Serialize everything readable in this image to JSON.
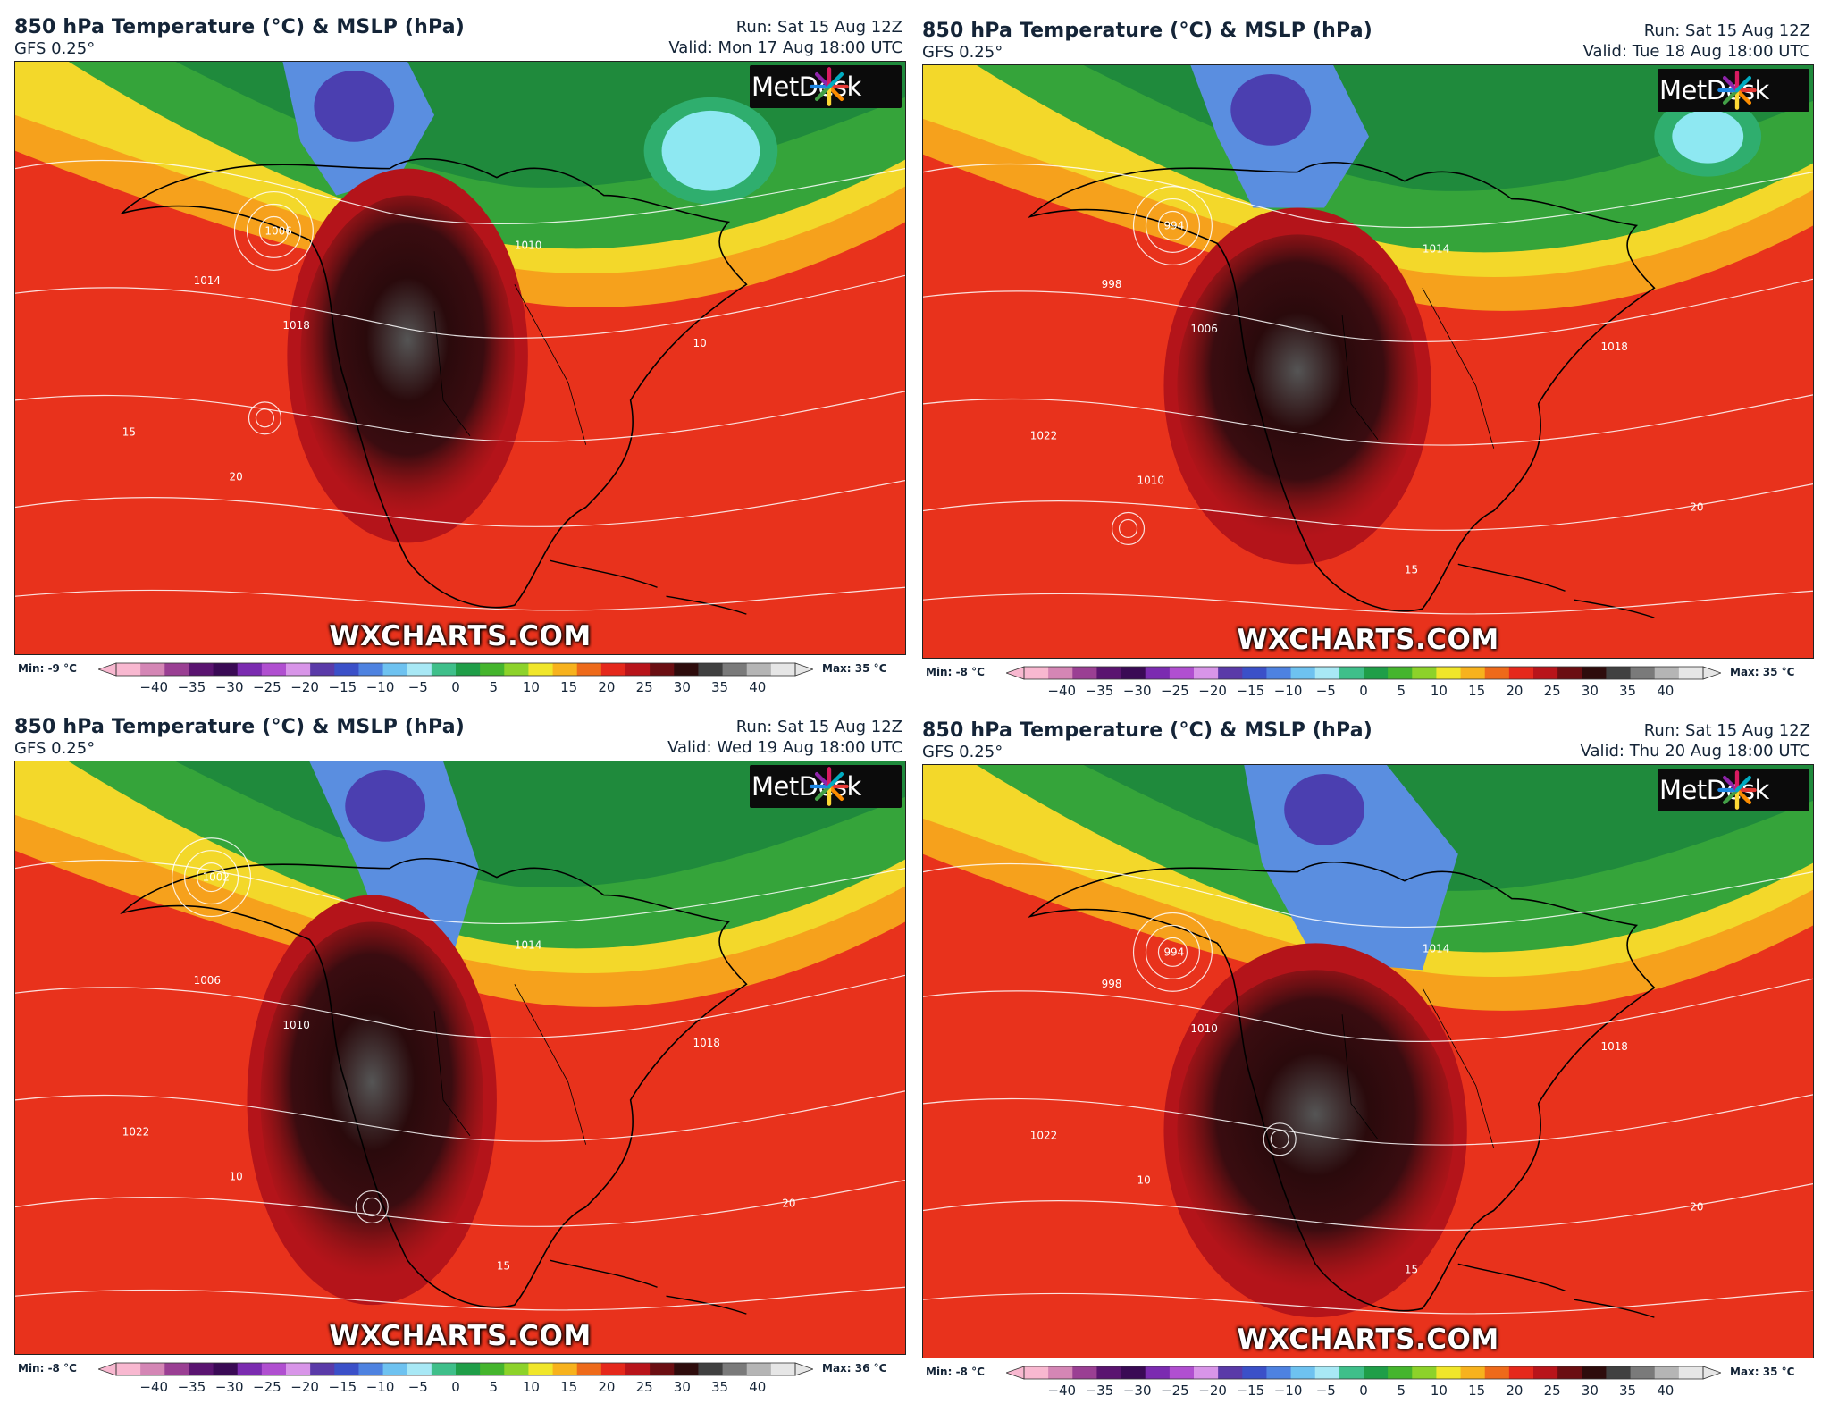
{
  "panels": [
    {
      "title": "850 hPa Temperature (°C) & MSLP (hPa)",
      "model": "GFS 0.25°",
      "run": "Run: Sat 15 Aug 12Z",
      "valid": "Valid: Mon 17 Aug 18:00 UTC",
      "min": "Min: -9 °C",
      "max": "Max: 35 °C",
      "contour_labels": [
        "1006",
        "1014",
        "1018",
        "1010",
        "10",
        "15",
        "20"
      ]
    },
    {
      "title": "850 hPa Temperature (°C) & MSLP (hPa)",
      "model": "GFS 0.25°",
      "run": "Run: Sat 15 Aug 12Z",
      "valid": "Valid: Tue 18 Aug 18:00 UTC",
      "min": "Min: -8 °C",
      "max": "Max: 35 °C",
      "contour_labels": [
        "994",
        "998",
        "1006",
        "1014",
        "1018",
        "1022",
        "1010",
        "15",
        "20"
      ]
    },
    {
      "title": "850 hPa Temperature (°C) & MSLP (hPa)",
      "model": "GFS 0.25°",
      "run": "Run: Sat 15 Aug 12Z",
      "valid": "Valid: Wed 19 Aug 18:00 UTC",
      "min": "Min: -8 °C",
      "max": "Max: 36 °C",
      "contour_labels": [
        "1002",
        "1006",
        "1010",
        "1014",
        "1018",
        "1022",
        "10",
        "15",
        "20"
      ]
    },
    {
      "title": "850 hPa Temperature (°C) & MSLP (hPa)",
      "model": "GFS 0.25°",
      "run": "Run: Sat 15 Aug 12Z",
      "valid": "Valid: Thu 20 Aug 18:00 UTC",
      "min": "Min: -8 °C",
      "max": "Max: 35 °C",
      "contour_labels": [
        "994",
        "998",
        "1010",
        "1014",
        "1018",
        "1022",
        "10",
        "15",
        "20"
      ]
    }
  ],
  "logo_text": "MetDesk",
  "site_watermark": "WXCHARTS.COM",
  "colorbar": {
    "ticks": [
      "−40",
      "−35",
      "−30",
      "−25",
      "−20",
      "−15",
      "−10",
      "−5",
      "0",
      "5",
      "10",
      "15",
      "20",
      "25",
      "30",
      "35",
      "40"
    ],
    "range": [
      -45,
      45
    ],
    "colors": [
      "#f8b8d0",
      "#d486b5",
      "#9a3f93",
      "#5a1470",
      "#3a0a55",
      "#7b2bb0",
      "#b04fd0",
      "#d895e8",
      "#5a3aa8",
      "#3b50c8",
      "#4e82e0",
      "#6ec2f0",
      "#a8e8f5",
      "#3fbf8a",
      "#1f9e48",
      "#45b52d",
      "#8dd22a",
      "#f0e62a",
      "#f7b21d",
      "#ee6a1a",
      "#e5281b",
      "#b8141a",
      "#6b0e12",
      "#2e0c0c",
      "#404040",
      "#7a7a7a",
      "#b5b5b5",
      "#e6e6e6"
    ]
  },
  "map_colors": {
    "ocean_warm": "#e8321c",
    "ocean_mid": "#f0681a",
    "band_orange": "#f6a11c",
    "band_yellow": "#f3d82a",
    "green": "#35a43a",
    "green_dark": "#1f8a3c",
    "cold_blue": "#5a8ee0",
    "cold_purple": "#4b3fb0",
    "cyan": "#8ee8f2",
    "heat_dark": "#3a0c10",
    "heat_core": "#555555",
    "contour": "#ffffff",
    "coast": "#000000"
  }
}
